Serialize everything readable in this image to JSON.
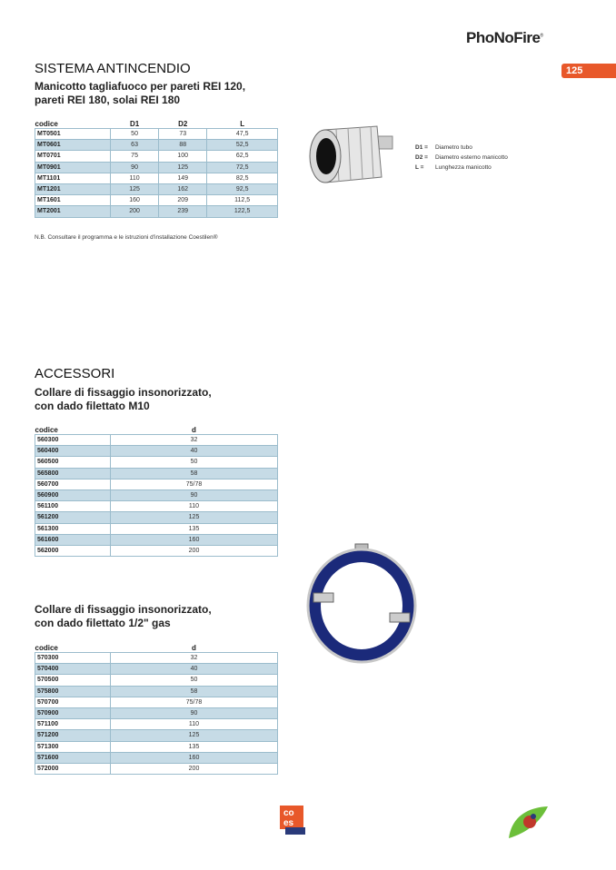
{
  "header": {
    "brand": "PhoNoFire",
    "brand_mark": "®",
    "page_number": "125"
  },
  "section1": {
    "title": "SISTEMA ANTINCENDIO",
    "subtitle_line1": "Manicotto tagliafuoco per pareti REI 120,",
    "subtitle_line2": "pareti REI 180, solai REI 180",
    "columns": [
      "codice",
      "D1",
      "D2",
      "L"
    ],
    "rows": [
      [
        "MT0501",
        "50",
        "73",
        "47,5"
      ],
      [
        "MT0601",
        "63",
        "88",
        "52,5"
      ],
      [
        "MT0701",
        "75",
        "100",
        "62,5"
      ],
      [
        "MT0901",
        "90",
        "125",
        "72,5"
      ],
      [
        "MT1101",
        "110",
        "149",
        "82,5"
      ],
      [
        "MT1201",
        "125",
        "162",
        "92,5"
      ],
      [
        "MT1601",
        "160",
        "209",
        "112,5"
      ],
      [
        "MT2001",
        "200",
        "239",
        "122,5"
      ]
    ],
    "note": "N.B. Consultare il programma e le istruzioni d'installazione Coestilen®",
    "legend": [
      {
        "key": "D1 =",
        "text": "Diametro tubo"
      },
      {
        "key": "D2 =",
        "text": "Diametro esterno manicotto"
      },
      {
        "key": "L   =",
        "text": "Lunghezza manicotto"
      }
    ]
  },
  "section2": {
    "title": "ACCESSORI",
    "subtitle_line1": "Collare di fissaggio insonorizzato,",
    "subtitle_line2": "con dado filettato M10",
    "columns": [
      "codice",
      "d"
    ],
    "rows": [
      [
        "560300",
        "32"
      ],
      [
        "560400",
        "40"
      ],
      [
        "560500",
        "50"
      ],
      [
        "565800",
        "58"
      ],
      [
        "560700",
        "75/78"
      ],
      [
        "560900",
        "90"
      ],
      [
        "561100",
        "110"
      ],
      [
        "561200",
        "125"
      ],
      [
        "561300",
        "135"
      ],
      [
        "561600",
        "160"
      ],
      [
        "562000",
        "200"
      ]
    ]
  },
  "section3": {
    "subtitle_line1": "Collare di fissaggio insonorizzato,",
    "subtitle_line2": "con dado filettato 1/2\" gas",
    "columns": [
      "codice",
      "d"
    ],
    "rows": [
      [
        "570300",
        "32"
      ],
      [
        "570400",
        "40"
      ],
      [
        "570500",
        "50"
      ],
      [
        "575800",
        "58"
      ],
      [
        "570700",
        "75/78"
      ],
      [
        "570900",
        "90"
      ],
      [
        "571100",
        "110"
      ],
      [
        "571200",
        "125"
      ],
      [
        "571300",
        "135"
      ],
      [
        "571600",
        "160"
      ],
      [
        "572000",
        "200"
      ]
    ]
  },
  "footer": {
    "logo_text": "coes",
    "colors": {
      "accent": "#e8582a",
      "row_alt": "#c6dbe6"
    }
  }
}
